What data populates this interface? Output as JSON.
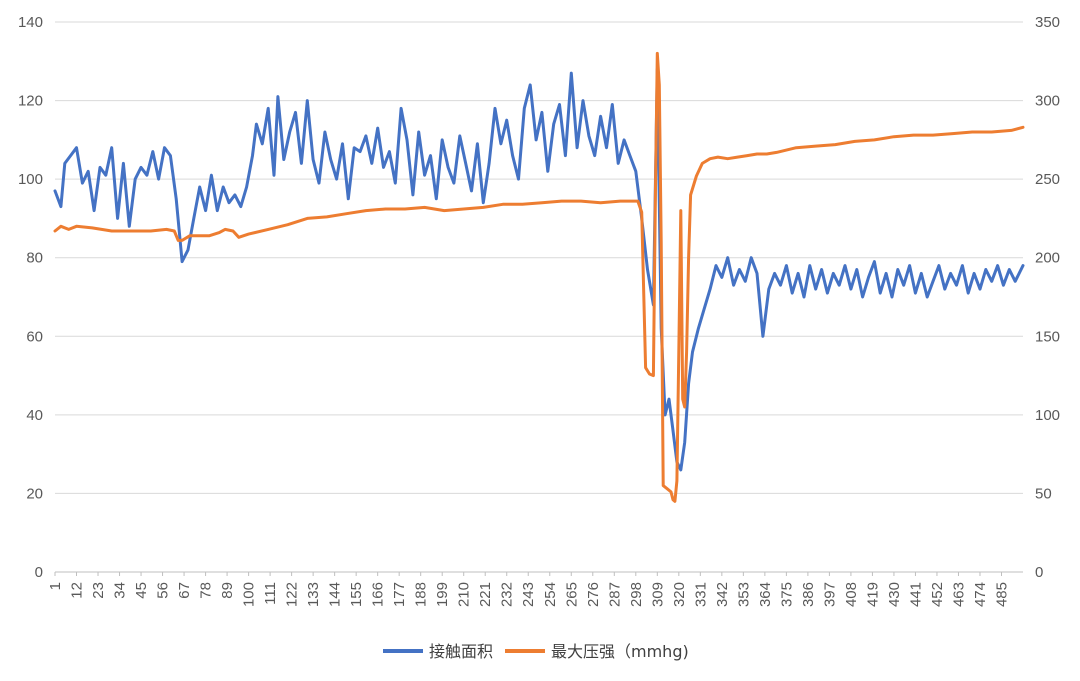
{
  "chart_data": {
    "type": "line",
    "title": "",
    "xlabel": "",
    "ylabel": "",
    "x_range": [
      1,
      496
    ],
    "x_tick_labels": [
      "1",
      "12",
      "23",
      "34",
      "45",
      "56",
      "67",
      "78",
      "89",
      "100",
      "111",
      "122",
      "133",
      "144",
      "155",
      "166",
      "177",
      "188",
      "199",
      "210",
      "221",
      "232",
      "243",
      "254",
      "265",
      "276",
      "287",
      "298",
      "309",
      "320",
      "331",
      "342",
      "353",
      "364",
      "375",
      "386",
      "397",
      "408",
      "419",
      "430",
      "441",
      "452",
      "463",
      "474",
      "485"
    ],
    "y_left_range": [
      0,
      140
    ],
    "y_left_ticks": [
      "0",
      "20",
      "40",
      "60",
      "80",
      "100",
      "120",
      "140"
    ],
    "y_right_range": [
      0,
      350
    ],
    "y_right_ticks": [
      "0",
      "50",
      "100",
      "150",
      "200",
      "250",
      "300",
      "350"
    ],
    "grid": true,
    "legend_position": "bottom",
    "series": [
      {
        "name": "接触面积",
        "axis": "left",
        "color": "#4472C4",
        "points": [
          [
            1,
            97
          ],
          [
            4,
            93
          ],
          [
            6,
            104
          ],
          [
            9,
            106
          ],
          [
            12,
            108
          ],
          [
            15,
            99
          ],
          [
            18,
            102
          ],
          [
            21,
            92
          ],
          [
            24,
            103
          ],
          [
            27,
            101
          ],
          [
            30,
            108
          ],
          [
            33,
            90
          ],
          [
            36,
            104
          ],
          [
            39,
            88
          ],
          [
            42,
            100
          ],
          [
            45,
            103
          ],
          [
            48,
            101
          ],
          [
            51,
            107
          ],
          [
            54,
            100
          ],
          [
            57,
            108
          ],
          [
            60,
            106
          ],
          [
            63,
            95
          ],
          [
            66,
            79
          ],
          [
            69,
            82
          ],
          [
            72,
            90
          ],
          [
            75,
            98
          ],
          [
            78,
            92
          ],
          [
            81,
            101
          ],
          [
            84,
            92
          ],
          [
            87,
            98
          ],
          [
            90,
            94
          ],
          [
            93,
            96
          ],
          [
            96,
            93
          ],
          [
            99,
            98
          ],
          [
            102,
            106
          ],
          [
            104,
            114
          ],
          [
            107,
            109
          ],
          [
            110,
            118
          ],
          [
            113,
            101
          ],
          [
            115,
            121
          ],
          [
            118,
            105
          ],
          [
            121,
            112
          ],
          [
            124,
            117
          ],
          [
            127,
            104
          ],
          [
            130,
            120
          ],
          [
            133,
            105
          ],
          [
            136,
            99
          ],
          [
            139,
            112
          ],
          [
            142,
            105
          ],
          [
            145,
            100
          ],
          [
            148,
            109
          ],
          [
            151,
            95
          ],
          [
            154,
            108
          ],
          [
            157,
            107
          ],
          [
            160,
            111
          ],
          [
            163,
            104
          ],
          [
            166,
            113
          ],
          [
            169,
            103
          ],
          [
            172,
            107
          ],
          [
            175,
            99
          ],
          [
            178,
            118
          ],
          [
            181,
            110
          ],
          [
            184,
            96
          ],
          [
            187,
            112
          ],
          [
            190,
            101
          ],
          [
            193,
            106
          ],
          [
            196,
            95
          ],
          [
            199,
            110
          ],
          [
            202,
            103
          ],
          [
            205,
            99
          ],
          [
            208,
            111
          ],
          [
            211,
            104
          ],
          [
            214,
            97
          ],
          [
            217,
            109
          ],
          [
            220,
            94
          ],
          [
            223,
            104
          ],
          [
            226,
            118
          ],
          [
            229,
            109
          ],
          [
            232,
            115
          ],
          [
            235,
            106
          ],
          [
            238,
            100
          ],
          [
            241,
            118
          ],
          [
            244,
            124
          ],
          [
            247,
            110
          ],
          [
            250,
            117
          ],
          [
            253,
            102
          ],
          [
            256,
            114
          ],
          [
            259,
            119
          ],
          [
            262,
            106
          ],
          [
            265,
            127
          ],
          [
            268,
            108
          ],
          [
            271,
            120
          ],
          [
            274,
            111
          ],
          [
            277,
            106
          ],
          [
            280,
            116
          ],
          [
            283,
            108
          ],
          [
            286,
            119
          ],
          [
            289,
            104
          ],
          [
            292,
            110
          ],
          [
            295,
            106
          ],
          [
            298,
            102
          ],
          [
            301,
            90
          ],
          [
            304,
            77
          ],
          [
            307,
            68
          ],
          [
            309,
            128
          ],
          [
            311,
            62
          ],
          [
            313,
            40
          ],
          [
            315,
            44
          ],
          [
            317,
            36
          ],
          [
            319,
            28
          ],
          [
            321,
            26
          ],
          [
            323,
            33
          ],
          [
            325,
            48
          ],
          [
            327,
            56
          ],
          [
            330,
            62
          ],
          [
            333,
            67
          ],
          [
            336,
            72
          ],
          [
            339,
            78
          ],
          [
            342,
            75
          ],
          [
            345,
            80
          ],
          [
            348,
            73
          ],
          [
            351,
            77
          ],
          [
            354,
            74
          ],
          [
            357,
            80
          ],
          [
            360,
            76
          ],
          [
            363,
            60
          ],
          [
            366,
            72
          ],
          [
            369,
            76
          ],
          [
            372,
            73
          ],
          [
            375,
            78
          ],
          [
            378,
            71
          ],
          [
            381,
            76
          ],
          [
            384,
            70
          ],
          [
            387,
            78
          ],
          [
            390,
            72
          ],
          [
            393,
            77
          ],
          [
            396,
            71
          ],
          [
            399,
            76
          ],
          [
            402,
            73
          ],
          [
            405,
            78
          ],
          [
            408,
            72
          ],
          [
            411,
            77
          ],
          [
            414,
            70
          ],
          [
            417,
            75
          ],
          [
            420,
            79
          ],
          [
            423,
            71
          ],
          [
            426,
            76
          ],
          [
            429,
            70
          ],
          [
            432,
            77
          ],
          [
            435,
            73
          ],
          [
            438,
            78
          ],
          [
            441,
            71
          ],
          [
            444,
            76
          ],
          [
            447,
            70
          ],
          [
            450,
            74
          ],
          [
            453,
            78
          ],
          [
            456,
            72
          ],
          [
            459,
            76
          ],
          [
            462,
            73
          ],
          [
            465,
            78
          ],
          [
            468,
            71
          ],
          [
            471,
            76
          ],
          [
            474,
            72
          ],
          [
            477,
            77
          ],
          [
            480,
            74
          ],
          [
            483,
            78
          ],
          [
            486,
            73
          ],
          [
            489,
            77
          ],
          [
            492,
            74
          ],
          [
            496,
            78
          ]
        ]
      },
      {
        "name": "最大压强（mmhg)",
        "axis": "right",
        "color": "#ED7D31",
        "points": [
          [
            1,
            217
          ],
          [
            4,
            220
          ],
          [
            8,
            218
          ],
          [
            12,
            220
          ],
          [
            20,
            219
          ],
          [
            30,
            217
          ],
          [
            40,
            217
          ],
          [
            50,
            217
          ],
          [
            58,
            218
          ],
          [
            62,
            217
          ],
          [
            64,
            211
          ],
          [
            66,
            211
          ],
          [
            70,
            214
          ],
          [
            75,
            214
          ],
          [
            80,
            214
          ],
          [
            85,
            216
          ],
          [
            88,
            218
          ],
          [
            92,
            217
          ],
          [
            95,
            213
          ],
          [
            100,
            215
          ],
          [
            110,
            218
          ],
          [
            120,
            221
          ],
          [
            130,
            225
          ],
          [
            140,
            226
          ],
          [
            150,
            228
          ],
          [
            160,
            230
          ],
          [
            170,
            231
          ],
          [
            180,
            231
          ],
          [
            190,
            232
          ],
          [
            200,
            230
          ],
          [
            210,
            231
          ],
          [
            220,
            232
          ],
          [
            230,
            234
          ],
          [
            240,
            234
          ],
          [
            250,
            235
          ],
          [
            260,
            236
          ],
          [
            270,
            236
          ],
          [
            280,
            235
          ],
          [
            290,
            236
          ],
          [
            296,
            236
          ],
          [
            299,
            236
          ],
          [
            301,
            229
          ],
          [
            303,
            130
          ],
          [
            305,
            126
          ],
          [
            307,
            125
          ],
          [
            308,
            240
          ],
          [
            309,
            330
          ],
          [
            310,
            310
          ],
          [
            311,
            210
          ],
          [
            312,
            55
          ],
          [
            314,
            53
          ],
          [
            316,
            51
          ],
          [
            317,
            46
          ],
          [
            318,
            45
          ],
          [
            319,
            58
          ],
          [
            320,
            140
          ],
          [
            321,
            230
          ],
          [
            322,
            110
          ],
          [
            323,
            105
          ],
          [
            324,
            140
          ],
          [
            325,
            200
          ],
          [
            326,
            240
          ],
          [
            329,
            252
          ],
          [
            332,
            260
          ],
          [
            336,
            263
          ],
          [
            340,
            264
          ],
          [
            345,
            263
          ],
          [
            350,
            264
          ],
          [
            355,
            265
          ],
          [
            360,
            266
          ],
          [
            365,
            266
          ],
          [
            370,
            267
          ],
          [
            380,
            270
          ],
          [
            390,
            271
          ],
          [
            400,
            272
          ],
          [
            410,
            274
          ],
          [
            420,
            275
          ],
          [
            430,
            277
          ],
          [
            440,
            278
          ],
          [
            450,
            278
          ],
          [
            460,
            279
          ],
          [
            470,
            280
          ],
          [
            480,
            280
          ],
          [
            490,
            281
          ],
          [
            496,
            283
          ]
        ]
      }
    ]
  }
}
